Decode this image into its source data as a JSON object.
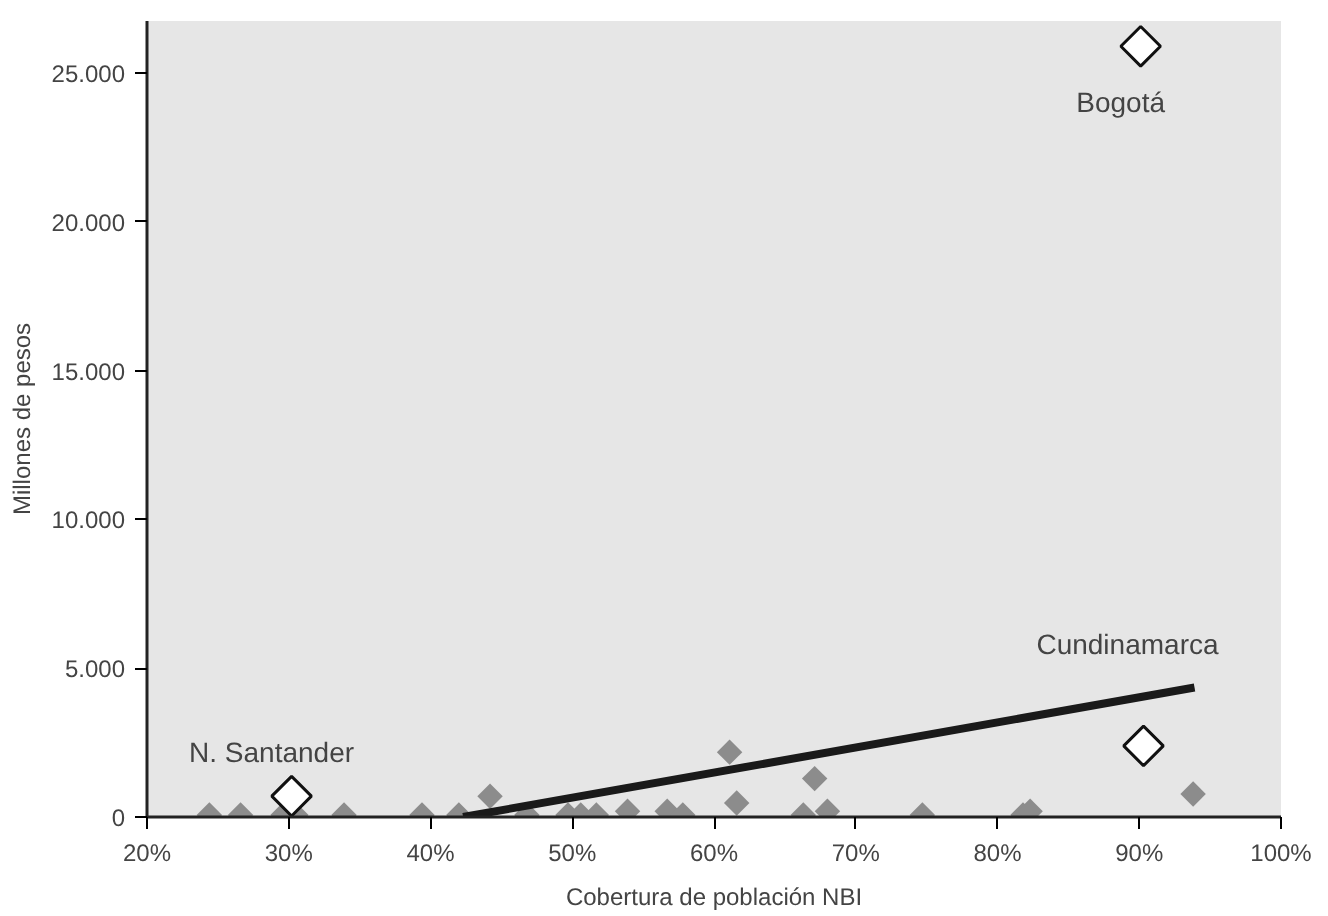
{
  "chart_data": {
    "type": "scatter",
    "xlabel": "Cobertura de población NBI",
    "ylabel": "Millones de pesos",
    "xlim": [
      20,
      100
    ],
    "ylim": [
      0,
      26750
    ],
    "xticks": [
      {
        "value": 20,
        "label": "20%"
      },
      {
        "value": 30,
        "label": "30%"
      },
      {
        "value": 40,
        "label": "40%"
      },
      {
        "value": 50,
        "label": "50%"
      },
      {
        "value": 60,
        "label": "60%"
      },
      {
        "value": 70,
        "label": "70%"
      },
      {
        "value": 80,
        "label": "80%"
      },
      {
        "value": 90,
        "label": "90%"
      },
      {
        "value": 100,
        "label": "100%"
      }
    ],
    "yticks": [
      0,
      {
        "value": 5000,
        "label": "5.000"
      },
      {
        "value": 10000,
        "label": "10.000"
      },
      {
        "value": 15000,
        "label": "15.000"
      },
      {
        "value": 20000,
        "label": "20.000"
      },
      {
        "value": 25000,
        "label": "25.000"
      }
    ],
    "grid": false,
    "marker": "diamond",
    "series": [
      {
        "color": "#8c8c8c",
        "x": [
          24.4,
          26.6,
          29.6,
          30.5,
          33.9,
          39.4,
          42.0,
          44.2,
          46.8,
          49.7,
          50.6,
          51.7,
          53.9,
          56.7,
          57.8,
          61.1,
          61.6,
          66.3,
          67.1,
          68.0,
          74.7,
          81.8,
          82.3,
          93.8
        ],
        "values": [
          70,
          70,
          70,
          70,
          70,
          70,
          70,
          700,
          70,
          70,
          70,
          70,
          190,
          190,
          70,
          2180,
          470,
          70,
          1290,
          190,
          70,
          70,
          190,
          770
        ]
      },
      {
        "color": "#ffffff",
        "x": [
          90.1,
          90.3,
          30.2
        ],
        "values": [
          25900,
          2390,
          700
        ]
      },
      {
        "type": "line",
        "marker": "none",
        "color": "#1a1a1a",
        "x": [
          42.3,
          93.9
        ],
        "values": [
          0,
          4350
        ]
      }
    ],
    "annotations": [
      {
        "text": "Bogotá",
        "x": 90.1,
        "y": 25900
      },
      {
        "text": "Cundinamarca",
        "x": 93.9,
        "y": 4350
      },
      {
        "text": "N. Santander",
        "x": 30.2,
        "y": 700
      }
    ]
  }
}
